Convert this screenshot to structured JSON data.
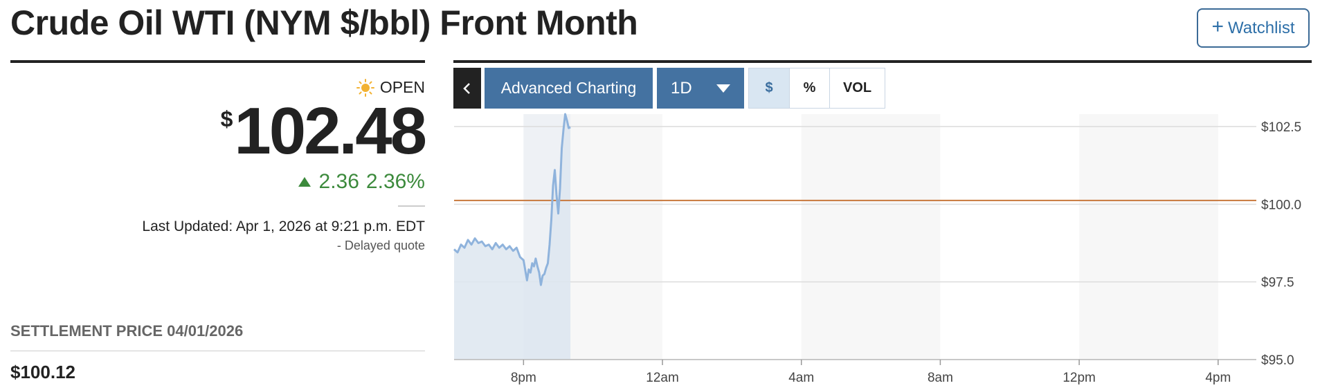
{
  "header": {
    "title": "Crude Oil WTI (NYM $/bbl) Front Month",
    "watchlist_label": "Watchlist",
    "watchlist_icon": "plus-icon"
  },
  "quote": {
    "market_status": "OPEN",
    "status_icon": "sun-icon",
    "currency_symbol": "$",
    "price": "102.48",
    "change": "2.36",
    "change_percent": "2.36%",
    "change_direction": "up",
    "last_updated": "Last Updated: Apr 1, 2026 at 9:21 p.m. EDT",
    "delayed_note": "-  Delayed quote"
  },
  "settlement": {
    "label": "SETTLEMENT PRICE 04/01/2026",
    "value": "$100.12"
  },
  "chart_toolbar": {
    "collapse_icon": "chevron-left-icon",
    "advanced_label": "Advanced Charting",
    "range_label": "1D",
    "mode_dollar": "$",
    "mode_percent": "%",
    "mode_volume": "VOL",
    "active_mode": "$"
  },
  "colors": {
    "accent_blue": "#4472a1",
    "positive_green": "#3c8a3c",
    "series_line": "#8fb3dc",
    "previous_close_line": "#c8783c"
  },
  "chart_data": {
    "type": "area",
    "x_ticks": [
      "8pm",
      "12am",
      "4am",
      "8am",
      "12pm",
      "4pm"
    ],
    "y_ticks": [
      "$102.5",
      "$100.0",
      "$97.5",
      "$95.0"
    ],
    "ylim": [
      95.0,
      102.9
    ],
    "xlim": [
      18.0,
      41.1
    ],
    "previous_close": 100.12,
    "series": [
      {
        "x": [
          18.0,
          18.1,
          18.2,
          18.3,
          18.4,
          18.5,
          18.6,
          18.7,
          18.8,
          18.9,
          19.0,
          19.1,
          19.2,
          19.3,
          19.4,
          19.5,
          19.6,
          19.7,
          19.8,
          19.9,
          20.0,
          20.1,
          20.15,
          20.2,
          20.25,
          20.3,
          20.35,
          20.4,
          20.45,
          20.5,
          20.55,
          20.6,
          20.65,
          20.7,
          20.75,
          20.8,
          20.85,
          20.9,
          20.95,
          21.0,
          21.05,
          21.1,
          21.15,
          21.2,
          21.25,
          21.3,
          21.35
        ],
        "y": [
          98.55,
          98.45,
          98.7,
          98.6,
          98.85,
          98.7,
          98.9,
          98.75,
          98.8,
          98.65,
          98.7,
          98.55,
          98.75,
          98.6,
          98.7,
          98.55,
          98.65,
          98.5,
          98.6,
          98.3,
          98.2,
          97.55,
          97.9,
          97.8,
          98.1,
          98.0,
          98.25,
          98.0,
          97.8,
          97.4,
          97.7,
          97.75,
          97.95,
          98.1,
          98.7,
          99.5,
          100.6,
          101.1,
          100.3,
          99.7,
          100.5,
          101.8,
          102.4,
          102.9,
          102.7,
          102.45,
          102.48
        ]
      }
    ]
  }
}
